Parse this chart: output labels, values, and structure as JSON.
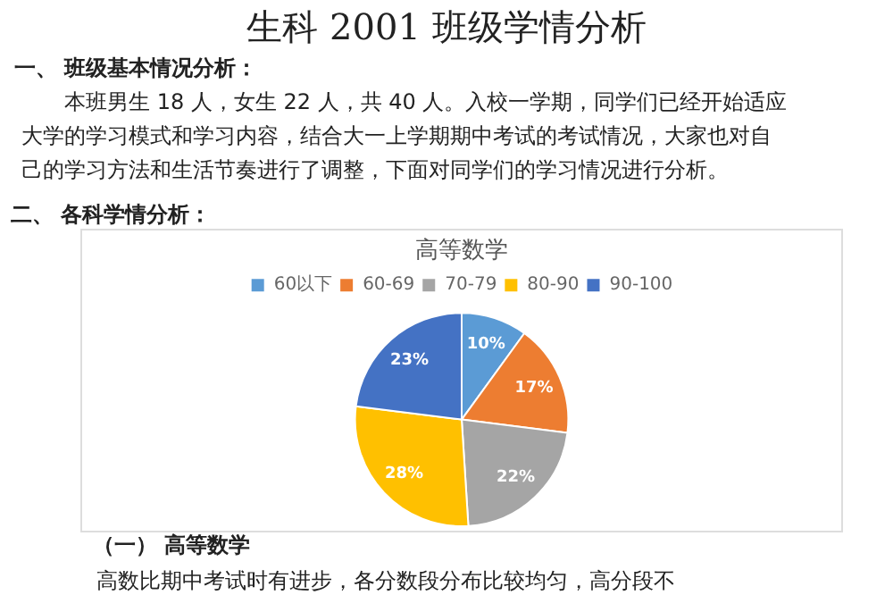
{
  "chart_data": {
    "type": "pie",
    "title": "高等数学",
    "categories": [
      "60以下",
      "60-69",
      "70-79",
      "80-90",
      "90-100"
    ],
    "values": [
      10,
      17,
      22,
      28,
      23
    ],
    "colors": [
      "#5b9bd5",
      "#ed7d31",
      "#a5a5a5",
      "#ffc000",
      "#4472c4"
    ],
    "value_labels": [
      "10%",
      "17%",
      "22%",
      "28%",
      "23%"
    ],
    "legend": "top",
    "annotations": [
      "生科 2001 班级学情分析",
      "一、 班级基本情况分析：",
      "本班男生 18 人，女生 22 人，共 40 人。入校一学期，同学们已经开始适应大学的学习模式和学习内容，结合大一上学期期中考试的考试情况，大家也对自己的学习方法和生活节奏进行了调整，下面对同学们的学习情况进行分析。",
      "二、 各科学情分析：",
      "（一） 高等数学",
      "高数比期中考试时有进步，各分数段分布比较均匀，高分段不"
    ]
  }
}
